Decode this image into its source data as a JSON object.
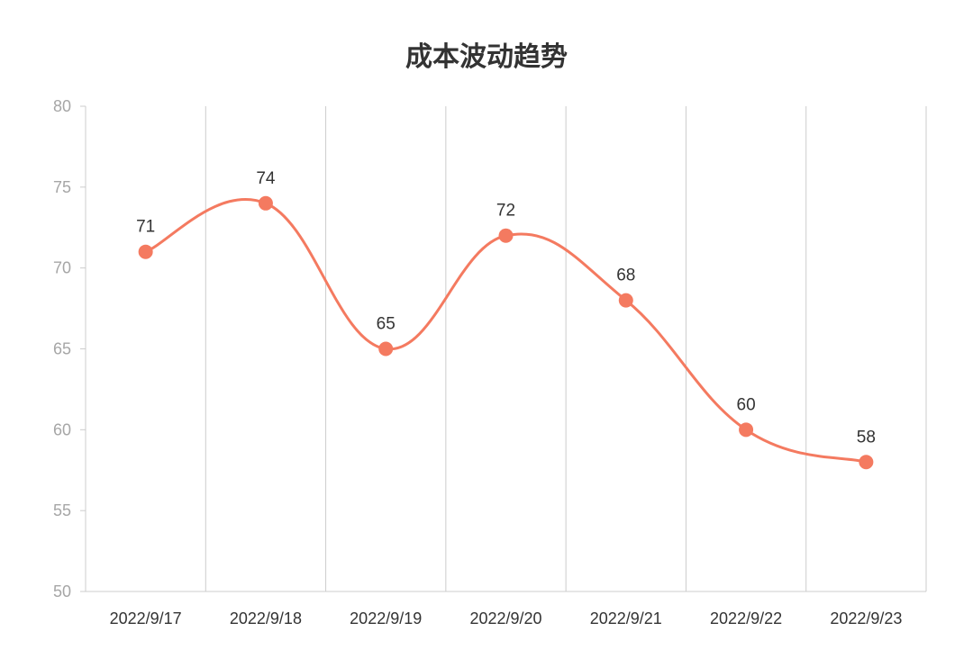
{
  "chart_data": {
    "type": "line",
    "title": "成本波动趋势",
    "xlabel": "",
    "ylabel": "",
    "categories": [
      "2022/9/17",
      "2022/9/18",
      "2022/9/19",
      "2022/9/20",
      "2022/9/21",
      "2022/9/22",
      "2022/9/23"
    ],
    "series": [
      {
        "values": [
          71,
          74,
          65,
          72,
          68,
          60,
          58
        ],
        "color": "#f47a60"
      }
    ],
    "ylim": [
      50,
      80
    ],
    "yticks": [
      50,
      55,
      60,
      65,
      70,
      75,
      80
    ],
    "grid": "vertical",
    "legend": "none",
    "smooth": true,
    "data_labels": true
  }
}
